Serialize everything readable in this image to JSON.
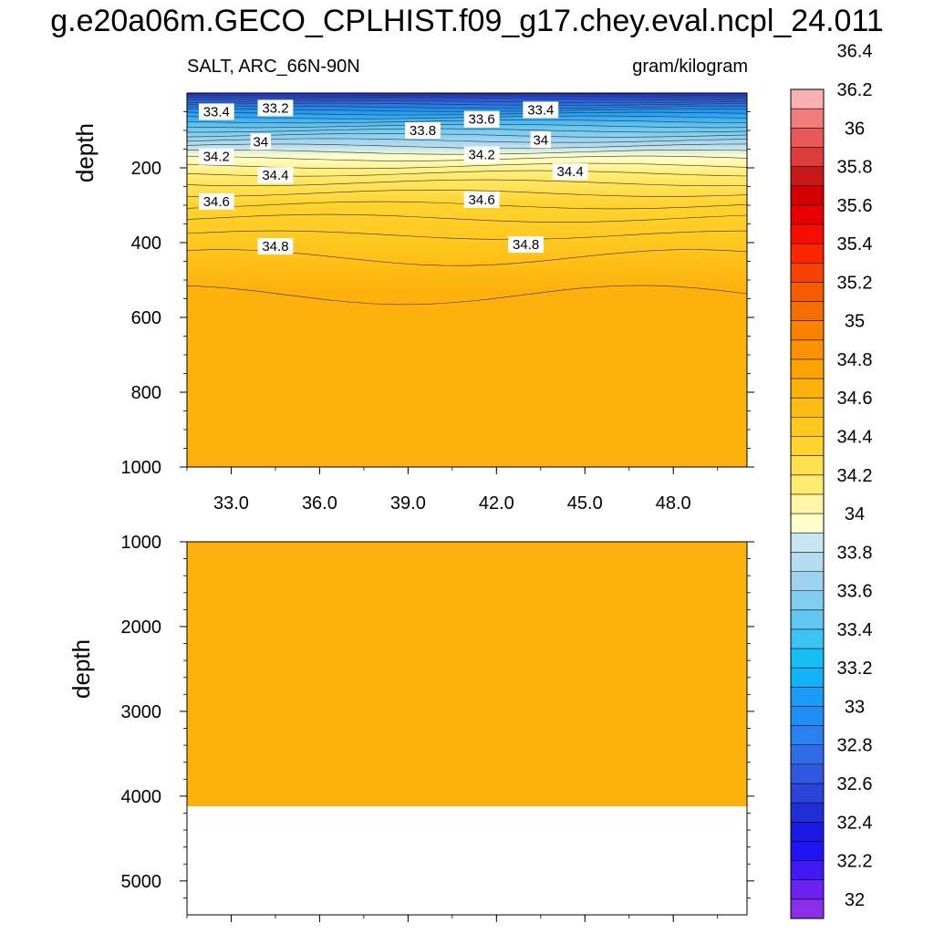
{
  "title": "g.e20a06m.GECO_CPLHIST.f09_g17.chey.eval.ncpl_24.011",
  "chart_data": {
    "type": "heatmap",
    "title": "g.e20a06m.GECO_CPLHIST.f09_g17.chey.eval.ncpl_24.011",
    "subtitle_left": "SALT, ARC_66N-90N",
    "subtitle_right": "gram/kilogram",
    "xlabel": "",
    "ylabel": "depth",
    "x_ticks": [
      "33.0",
      "36.0",
      "39.0",
      "42.0",
      "45.0",
      "48.0"
    ],
    "xlim": [
      31.5,
      50.5
    ],
    "upper_panel": {
      "ylim": [
        0,
        1000
      ],
      "y_ticks": [
        "200",
        "400",
        "600",
        "800",
        "1000"
      ],
      "contour_labels": [
        {
          "x": 32.5,
          "depth": 50,
          "text": "33.4"
        },
        {
          "x": 34.5,
          "depth": 40,
          "text": "33.2"
        },
        {
          "x": 39.5,
          "depth": 100,
          "text": "33.8"
        },
        {
          "x": 41.5,
          "depth": 70,
          "text": "33.6"
        },
        {
          "x": 43.5,
          "depth": 45,
          "text": "33.4"
        },
        {
          "x": 34.0,
          "depth": 130,
          "text": "34"
        },
        {
          "x": 43.5,
          "depth": 125,
          "text": "34"
        },
        {
          "x": 32.5,
          "depth": 170,
          "text": "34.2"
        },
        {
          "x": 41.5,
          "depth": 165,
          "text": "34.2"
        },
        {
          "x": 34.5,
          "depth": 220,
          "text": "34.4"
        },
        {
          "x": 44.5,
          "depth": 210,
          "text": "34.4"
        },
        {
          "x": 32.5,
          "depth": 290,
          "text": "34.6"
        },
        {
          "x": 41.5,
          "depth": 285,
          "text": "34.6"
        },
        {
          "x": 34.5,
          "depth": 410,
          "text": "34.8"
        },
        {
          "x": 43.0,
          "depth": 405,
          "text": "34.8"
        }
      ]
    },
    "lower_panel": {
      "ylim": [
        1000,
        5400
      ],
      "y_ticks": [
        "1000",
        "2000",
        "3000",
        "4000",
        "5000"
      ],
      "fill_bottom_depth": 4120
    },
    "colorbar": {
      "min": 31.9,
      "step": 0.1,
      "labels": [
        "36.4",
        "36.2",
        "36",
        "35.8",
        "35.6",
        "35.4",
        "35.2",
        "35",
        "34.8",
        "34.6",
        "34.4",
        "34.2",
        "34",
        "33.8",
        "33.6",
        "33.4",
        "33.2",
        "33",
        "32.8",
        "32.6",
        "32.4",
        "32.2",
        "32"
      ],
      "colors": [
        "#8c2ee8",
        "#6b21f2",
        "#4318f5",
        "#1e14f5",
        "#1a1ae3",
        "#1f2fd6",
        "#2c44d9",
        "#3058e0",
        "#2f6de6",
        "#2a80ee",
        "#208ff5",
        "#1c9bf7",
        "#12b2f9",
        "#17bef5",
        "#3cc2f3",
        "#62c6f2",
        "#82ccf0",
        "#9dd3ef",
        "#b4dcf0",
        "#c8e6f2",
        "#ffffcc",
        "#fff5a6",
        "#ffeb6e",
        "#ffe050",
        "#fed32e",
        "#fec81e",
        "#fdbc12",
        "#fdb10c",
        "#fca300",
        "#fb9200",
        "#f88100",
        "#f56f00",
        "#f55b00",
        "#f84300",
        "#fa2600",
        "#f80c00",
        "#e80000",
        "#d20000",
        "#c91818",
        "#dd3c3c",
        "#e95858",
        "#f07c7c",
        "#f9b0b0"
      ]
    }
  }
}
